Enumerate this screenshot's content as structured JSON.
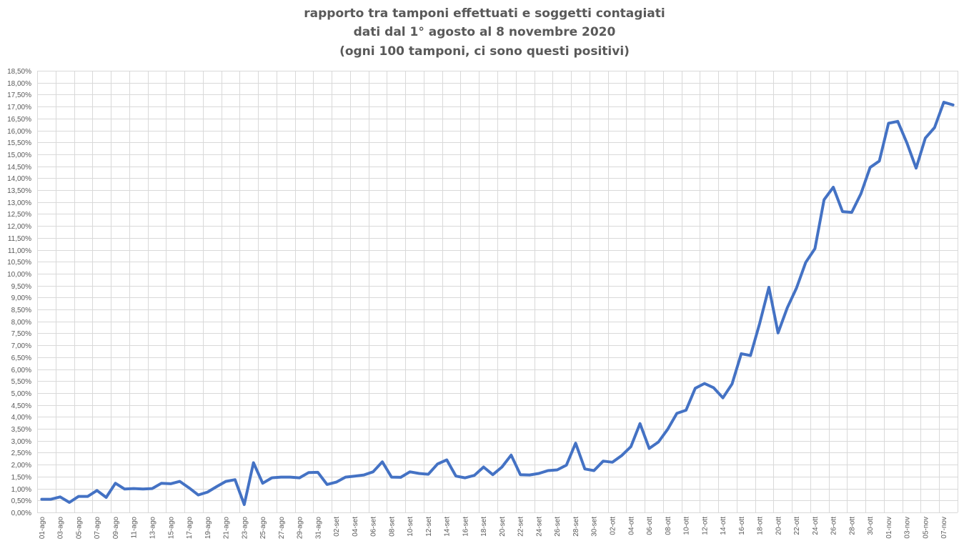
{
  "chart_data": {
    "type": "line",
    "title": [
      "rapporto tra tamponi effettuati e soggetti contagiati",
      "dati dal 1° agosto al 8 novembre 2020",
      "(ogni 100 tamponi, ci sono questi positivi)"
    ],
    "xlabel": "",
    "ylabel": "",
    "ylim": [
      0,
      18.5
    ],
    "y_tick_step": 0.5,
    "y_tick_format": "percent, 2 decimals, comma separator",
    "grid": true,
    "legend": "none",
    "series_color": "#4472c4",
    "x": [
      "01-ago",
      "02-ago",
      "03-ago",
      "04-ago",
      "05-ago",
      "06-ago",
      "07-ago",
      "08-ago",
      "09-ago",
      "10-ago",
      "11-ago",
      "12-ago",
      "13-ago",
      "14-ago",
      "15-ago",
      "16-ago",
      "17-ago",
      "18-ago",
      "19-ago",
      "20-ago",
      "21-ago",
      "22-ago",
      "23-ago",
      "24-ago",
      "25-ago",
      "26-ago",
      "27-ago",
      "28-ago",
      "29-ago",
      "30-ago",
      "31-ago",
      "01-set",
      "02-set",
      "03-set",
      "04-set",
      "05-set",
      "06-set",
      "07-set",
      "08-set",
      "09-set",
      "10-set",
      "11-set",
      "12-set",
      "13-set",
      "14-set",
      "15-set",
      "16-set",
      "17-set",
      "18-set",
      "19-set",
      "20-set",
      "21-set",
      "22-set",
      "23-set",
      "24-set",
      "25-set",
      "26-set",
      "27-set",
      "28-set",
      "29-set",
      "30-set",
      "01-ott",
      "02-ott",
      "03-ott",
      "04-ott",
      "05-ott",
      "06-ott",
      "07-ott",
      "08-ott",
      "09-ott",
      "10-ott",
      "11-ott",
      "12-ott",
      "13-ott",
      "14-ott",
      "15-ott",
      "16-ott",
      "17-ott",
      "18-ott",
      "19-ott",
      "20-ott",
      "21-ott",
      "22-ott",
      "23-ott",
      "24-ott",
      "25-ott",
      "26-ott",
      "27-ott",
      "28-ott",
      "29-ott",
      "30-ott",
      "31-ott",
      "01-nov",
      "02-nov",
      "03-nov",
      "04-nov",
      "05-nov",
      "06-nov",
      "07-nov",
      "08-nov"
    ],
    "x_tick_labels": [
      "01-ago",
      "03-ago",
      "05-ago",
      "07-ago",
      "09-ago",
      "11-ago",
      "13-ago",
      "15-ago",
      "17-ago",
      "19-ago",
      "21-ago",
      "23-ago",
      "25-ago",
      "27-ago",
      "29-ago",
      "31-ago",
      "02-set",
      "04-set",
      "06-set",
      "08-set",
      "10-set",
      "12-set",
      "14-set",
      "16-set",
      "18-set",
      "20-set",
      "22-set",
      "24-set",
      "26-set",
      "28-set",
      "30-set",
      "02-ott",
      "04-ott",
      "06-ott",
      "08-ott",
      "10-ott",
      "12-ott",
      "14-ott",
      "16-ott",
      "18-ott",
      "20-ott",
      "22-ott",
      "24-ott",
      "26-ott",
      "28-ott",
      "30-ott",
      "01-nov",
      "03-nov",
      "05-nov",
      "07-nov"
    ],
    "series": [
      {
        "values": [
          0.55,
          0.55,
          0.65,
          0.42,
          0.67,
          0.67,
          0.92,
          0.63,
          1.22,
          0.98,
          1.0,
          0.98,
          1.0,
          1.22,
          1.2,
          1.3,
          1.03,
          0.73,
          0.85,
          1.08,
          1.3,
          1.37,
          0.33,
          2.08,
          1.22,
          1.45,
          1.48,
          1.48,
          1.45,
          1.67,
          1.68,
          1.17,
          1.27,
          1.48,
          1.52,
          1.57,
          1.7,
          2.12,
          1.48,
          1.47,
          1.7,
          1.63,
          1.6,
          2.03,
          2.2,
          1.52,
          1.45,
          1.55,
          1.9,
          1.58,
          1.9,
          2.4,
          1.58,
          1.57,
          1.63,
          1.75,
          1.78,
          1.98,
          2.9,
          1.82,
          1.75,
          2.15,
          2.1,
          2.38,
          2.75,
          3.72,
          2.68,
          2.95,
          3.48,
          4.15,
          4.28,
          5.2,
          5.4,
          5.22,
          4.8,
          5.38,
          6.65,
          6.57,
          7.92,
          9.43,
          7.52,
          8.57,
          9.4,
          10.47,
          11.05,
          13.1,
          13.62,
          12.6,
          12.57,
          13.35,
          14.45,
          14.72,
          16.3,
          16.38,
          15.47,
          14.42,
          15.68,
          16.12,
          17.18,
          17.07
        ]
      }
    ]
  }
}
